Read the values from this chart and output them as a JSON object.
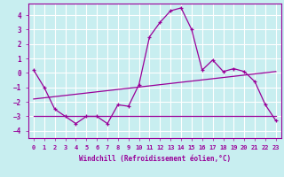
{
  "title": "",
  "xlabel": "Windchill (Refroidissement éolien,°C)",
  "ylabel": "",
  "bg_color": "#c8eef0",
  "line_color": "#990099",
  "grid_color": "#ffffff",
  "x_ticks": [
    0,
    1,
    2,
    3,
    4,
    5,
    6,
    7,
    8,
    9,
    10,
    11,
    12,
    13,
    14,
    15,
    16,
    17,
    18,
    19,
    20,
    21,
    22,
    23
  ],
  "y_ticks": [
    -4,
    -3,
    -2,
    -1,
    0,
    1,
    2,
    3,
    4
  ],
  "xlim": [
    -0.5,
    23.5
  ],
  "ylim": [
    -4.5,
    4.8
  ],
  "series1_x": [
    0,
    1,
    2,
    3,
    4,
    5,
    6,
    7,
    8,
    9,
    10,
    11,
    12,
    13,
    14,
    15,
    16,
    17,
    18,
    19,
    20,
    21,
    22,
    23
  ],
  "series1_y": [
    0.2,
    -1.0,
    -2.5,
    -3.0,
    -3.5,
    -3.0,
    -3.0,
    -3.5,
    -2.2,
    -2.3,
    -0.8,
    2.5,
    3.5,
    4.3,
    4.5,
    3.0,
    0.2,
    0.9,
    0.1,
    0.3,
    0.1,
    -0.6,
    -2.2,
    -3.3
  ],
  "series2_x": [
    0,
    23
  ],
  "series2_y": [
    -1.8,
    0.1
  ],
  "series3_x": [
    0,
    14,
    23
  ],
  "series3_y": [
    -3.0,
    -3.0,
    -3.0
  ]
}
